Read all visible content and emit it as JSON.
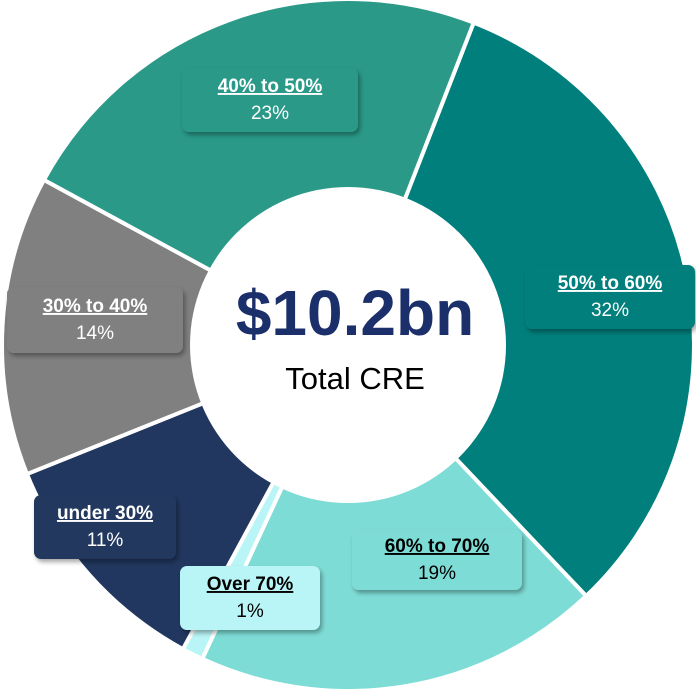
{
  "chart_data": {
    "type": "donut",
    "center_title": "$10.2bn",
    "center_subtitle": "Total CRE",
    "categories": [
      "50% to 60%",
      "60% to 70%",
      "Over 70%",
      "under 30%",
      "30% to 40%",
      "40% to 50%"
    ],
    "values": [
      32,
      19,
      1,
      11,
      14,
      23
    ],
    "value_labels": [
      "32%",
      "19%",
      "1%",
      "11%",
      "14%",
      "23%"
    ],
    "colors": [
      "#007f7c",
      "#7edcd6",
      "#b9f5f6",
      "#21375f",
      "#808080",
      "#2a9987"
    ],
    "label_text_colors": [
      "#ffffff",
      "#000000",
      "#000000",
      "#ffffff",
      "#ffffff",
      "#ffffff"
    ]
  }
}
